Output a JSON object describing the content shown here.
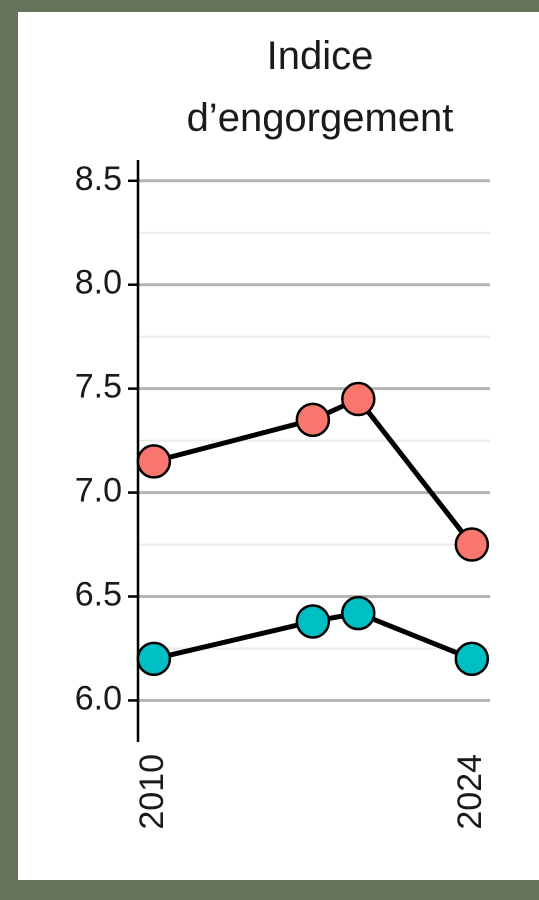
{
  "chart_data": {
    "type": "line",
    "title": "Indice d’engorgement",
    "x": [
      2010,
      2017,
      2019,
      2024
    ],
    "series": [
      {
        "color": "#f8766d",
        "values": [
          7.15,
          7.35,
          7.45,
          6.75
        ]
      },
      {
        "color": "#00bfc4",
        "values": [
          6.2,
          6.38,
          6.42,
          6.2
        ]
      }
    ],
    "line_color": "#000000",
    "xlim": [
      2009.3,
      2024.8
    ],
    "xticks": [
      2010,
      2024
    ],
    "ylim": [
      5.8,
      8.6
    ],
    "yticks": [
      {
        "value": 6,
        "label": "6.0"
      },
      6.5,
      {
        "value": 7,
        "label": "7.0"
      },
      7.5,
      {
        "value": 8,
        "label": "8.0"
      },
      8.5
    ],
    "grid": true
  }
}
